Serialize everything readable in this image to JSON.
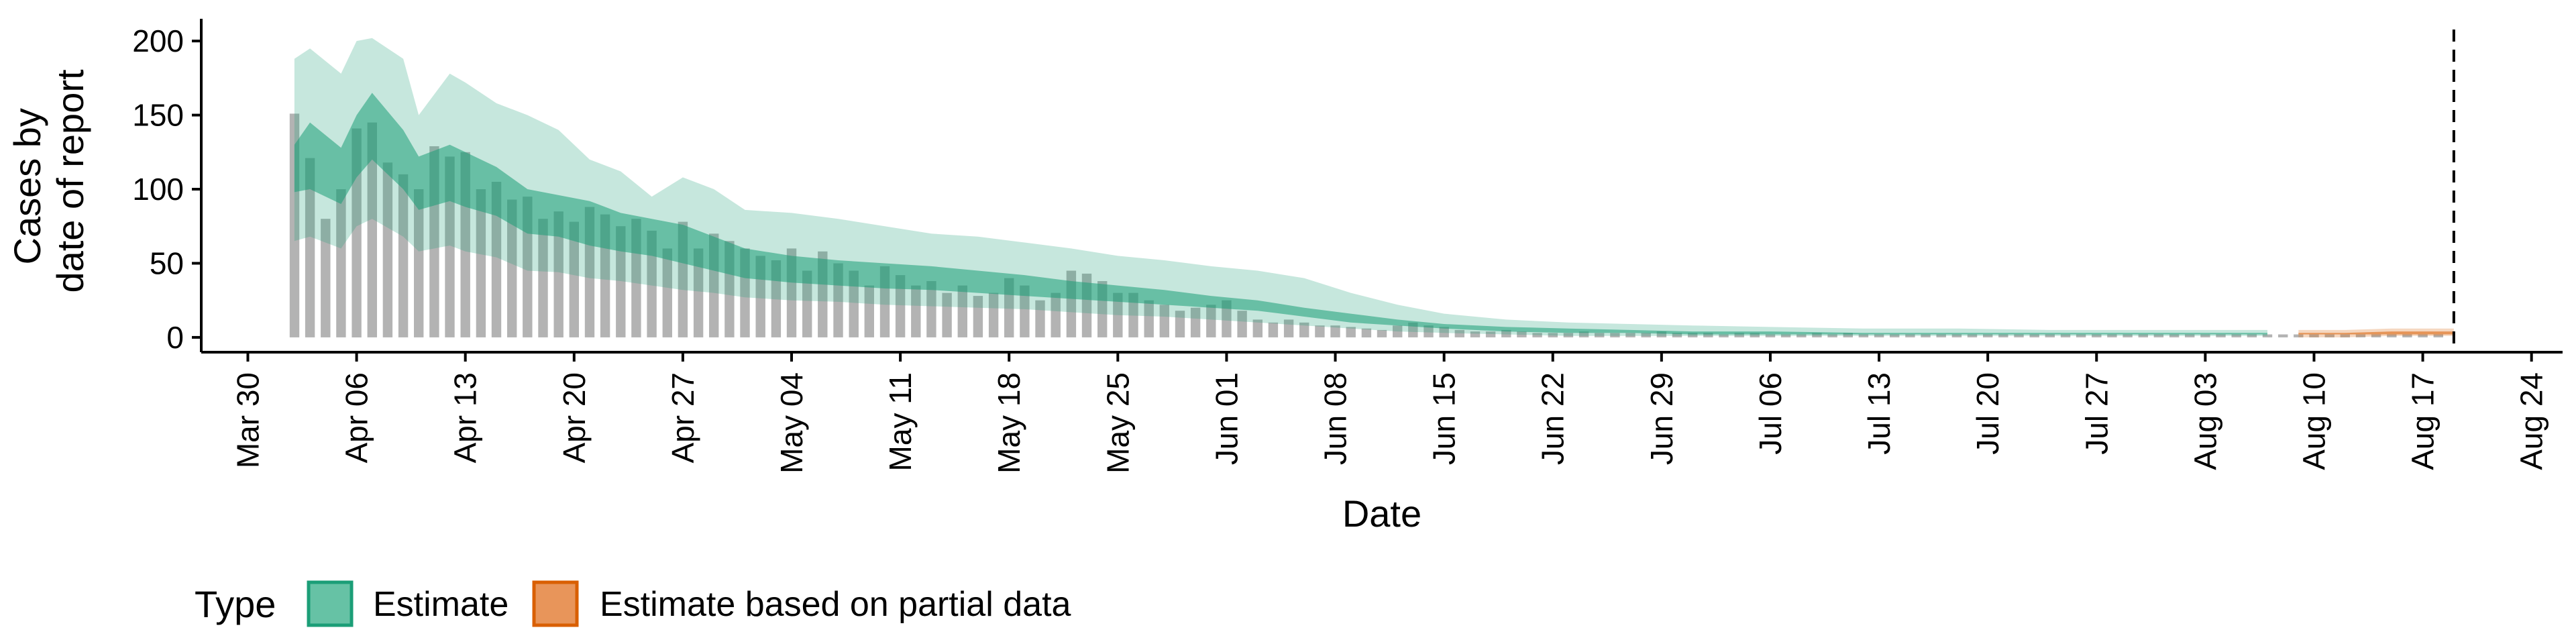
{
  "chart_data": {
    "type": "bar",
    "xlabel": "Date",
    "ylabel_lines": [
      "Cases by",
      "date of report"
    ],
    "ylim": [
      -10,
      215
    ],
    "y_ticks": [
      0,
      50,
      100,
      150,
      200
    ],
    "x_range": [
      "2020-03-27",
      "2020-08-26"
    ],
    "x_ticks": [
      {
        "date": "2020-03-30",
        "label": "Mar 30"
      },
      {
        "date": "2020-04-06",
        "label": "Apr 06"
      },
      {
        "date": "2020-04-13",
        "label": "Apr 13"
      },
      {
        "date": "2020-04-20",
        "label": "Apr 20"
      },
      {
        "date": "2020-04-27",
        "label": "Apr 27"
      },
      {
        "date": "2020-05-04",
        "label": "May 04"
      },
      {
        "date": "2020-05-11",
        "label": "May 11"
      },
      {
        "date": "2020-05-18",
        "label": "May 18"
      },
      {
        "date": "2020-05-25",
        "label": "May 25"
      },
      {
        "date": "2020-06-01",
        "label": "Jun 01"
      },
      {
        "date": "2020-06-08",
        "label": "Jun 08"
      },
      {
        "date": "2020-06-15",
        "label": "Jun 15"
      },
      {
        "date": "2020-06-22",
        "label": "Jun 22"
      },
      {
        "date": "2020-06-29",
        "label": "Jun 29"
      },
      {
        "date": "2020-07-06",
        "label": "Jul 06"
      },
      {
        "date": "2020-07-13",
        "label": "Jul 13"
      },
      {
        "date": "2020-07-20",
        "label": "Jul 20"
      },
      {
        "date": "2020-07-27",
        "label": "Jul 27"
      },
      {
        "date": "2020-08-03",
        "label": "Aug 03"
      },
      {
        "date": "2020-08-10",
        "label": "Aug 10"
      },
      {
        "date": "2020-08-17",
        "label": "Aug 17"
      },
      {
        "date": "2020-08-24",
        "label": "Aug 24"
      }
    ],
    "vline_date": "2020-08-19",
    "reported_cases": {
      "start_date": "2020-04-02",
      "values": [
        151,
        121,
        80,
        100,
        141,
        145,
        118,
        110,
        100,
        129,
        122,
        125,
        100,
        105,
        93,
        95,
        80,
        85,
        78,
        88,
        83,
        75,
        80,
        72,
        60,
        78,
        60,
        70,
        65,
        60,
        55,
        52,
        60,
        45,
        58,
        50,
        45,
        35,
        48,
        42,
        35,
        38,
        30,
        35,
        28,
        30,
        40,
        35,
        25,
        30,
        45,
        43,
        38,
        30,
        30,
        25,
        22,
        18,
        20,
        22,
        25,
        18,
        12,
        10,
        12,
        10,
        8,
        8,
        7,
        6,
        5,
        8,
        10,
        8,
        7,
        5,
        4,
        4,
        5,
        4,
        3,
        3,
        3,
        4,
        3,
        3,
        3,
        3,
        4,
        3,
        3,
        3,
        2,
        3,
        3,
        2,
        2,
        2,
        3,
        2,
        3,
        2,
        2,
        2,
        2,
        2,
        2,
        2,
        2,
        2,
        2,
        2,
        2,
        2,
        2,
        2,
        2,
        2,
        2,
        2,
        2,
        2,
        2,
        2,
        2,
        2,
        2,
        2,
        2,
        2,
        2,
        2,
        2,
        2,
        2,
        2,
        2,
        2,
        2
      ]
    },
    "series": [
      {
        "name": "Estimate",
        "color": "#1b9e77",
        "dates": [
          "2020-04-02",
          "2020-04-03",
          "2020-04-05",
          "2020-04-06",
          "2020-04-07",
          "2020-04-09",
          "2020-04-10",
          "2020-04-12",
          "2020-04-13",
          "2020-04-15",
          "2020-04-17",
          "2020-04-19",
          "2020-04-21",
          "2020-04-23",
          "2020-04-25",
          "2020-04-27",
          "2020-04-29",
          "2020-05-01",
          "2020-05-04",
          "2020-05-07",
          "2020-05-10",
          "2020-05-13",
          "2020-05-16",
          "2020-05-19",
          "2020-05-22",
          "2020-05-25",
          "2020-05-28",
          "2020-05-31",
          "2020-06-03",
          "2020-06-06",
          "2020-06-09",
          "2020-06-12",
          "2020-06-15",
          "2020-06-19",
          "2020-06-23",
          "2020-06-27",
          "2020-07-01",
          "2020-07-06",
          "2020-07-12",
          "2020-07-18",
          "2020-07-24",
          "2020-07-30",
          "2020-08-04",
          "2020-08-07"
        ],
        "outer_upper": [
          188,
          195,
          178,
          200,
          202,
          188,
          150,
          178,
          172,
          158,
          150,
          140,
          120,
          112,
          95,
          108,
          100,
          86,
          84,
          80,
          75,
          70,
          68,
          64,
          60,
          55,
          52,
          48,
          45,
          40,
          30,
          22,
          16,
          12,
          10,
          9,
          8,
          7,
          6,
          6,
          5,
          5,
          5,
          5
        ],
        "inner_upper": [
          130,
          145,
          128,
          150,
          165,
          140,
          122,
          130,
          125,
          115,
          100,
          96,
          92,
          84,
          80,
          76,
          68,
          60,
          55,
          52,
          50,
          48,
          45,
          42,
          38,
          35,
          32,
          28,
          25,
          20,
          16,
          12,
          9,
          7,
          6,
          5,
          4,
          4,
          3,
          3,
          3,
          3,
          3,
          3
        ],
        "inner_lower": [
          98,
          100,
          90,
          108,
          120,
          100,
          86,
          92,
          88,
          82,
          70,
          68,
          62,
          58,
          55,
          50,
          45,
          40,
          37,
          35,
          33,
          32,
          30,
          28,
          26,
          24,
          22,
          20,
          18,
          14,
          10,
          8,
          6,
          4,
          3,
          3,
          2,
          2,
          2,
          2,
          2,
          2,
          2,
          2
        ],
        "outer_lower": [
          65,
          68,
          60,
          75,
          80,
          68,
          58,
          62,
          58,
          54,
          45,
          44,
          40,
          38,
          35,
          32,
          30,
          27,
          25,
          24,
          22,
          21,
          20,
          19,
          17,
          15,
          14,
          12,
          10,
          8,
          6,
          4,
          3,
          2,
          1,
          1,
          1,
          1,
          1,
          1,
          1,
          1,
          1,
          1
        ]
      },
      {
        "name": "Estimate based on partial data",
        "color": "#d95f02",
        "dates": [
          "2020-08-09",
          "2020-08-12",
          "2020-08-15",
          "2020-08-19"
        ],
        "outer_upper": [
          5,
          5,
          6,
          6
        ],
        "inner_upper": [
          3,
          3,
          4,
          4
        ],
        "inner_lower": [
          2,
          2,
          2,
          2
        ],
        "outer_lower": [
          0,
          0,
          1,
          1
        ]
      }
    ],
    "legend": {
      "title": "Type",
      "position": "bottom-left",
      "items": [
        {
          "label": "Estimate",
          "fill": "#66c2a5",
          "stroke": "#1b9e77"
        },
        {
          "label": "Estimate based on partial data",
          "fill": "#e8955a",
          "stroke": "#d95f02"
        }
      ]
    }
  }
}
